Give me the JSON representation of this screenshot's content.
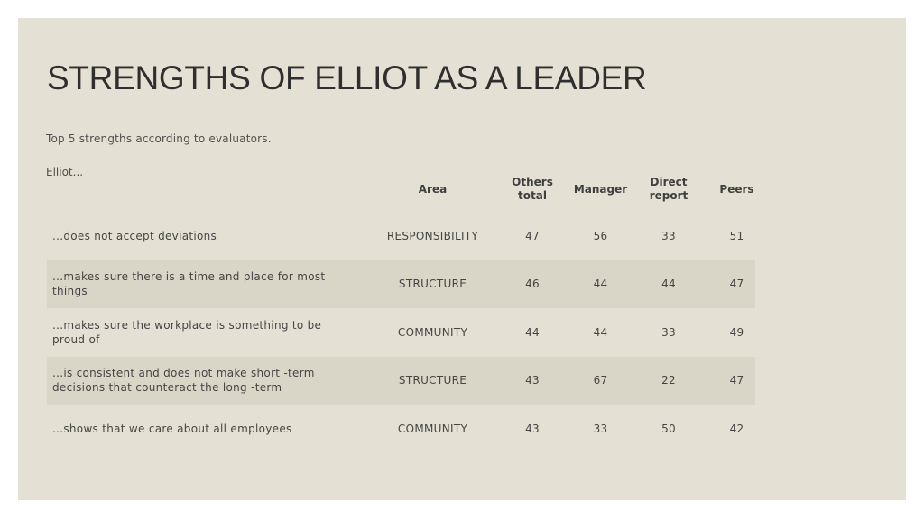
{
  "slide": {
    "title": "STRENGTHS OF ELLIOT AS A LEADER",
    "subtitle": "Top 5 strengths according to evaluators.",
    "lead": "Elliot..."
  },
  "table": {
    "headers": {
      "area": "Area",
      "others_total": "Others total",
      "manager": "Manager",
      "direct_report": "Direct report",
      "peers": "Peers"
    },
    "rows": [
      {
        "statement": "...does not accept deviations",
        "area": "RESPONSIBILITY",
        "others_total": "47",
        "manager": "56",
        "direct_report": "33",
        "peers": "51"
      },
      {
        "statement": "...makes sure there is a time and place for most things",
        "area": "STRUCTURE",
        "others_total": "46",
        "manager": "44",
        "direct_report": "44",
        "peers": "47"
      },
      {
        "statement": "...makes sure the workplace is something to be proud of",
        "area": "COMMUNITY",
        "others_total": "44",
        "manager": "44",
        "direct_report": "33",
        "peers": "49"
      },
      {
        "statement": "...is consistent and does not make short -term decisions that counteract the long -term",
        "area": "STRUCTURE",
        "others_total": "43",
        "manager": "67",
        "direct_report": "22",
        "peers": "47"
      },
      {
        "statement": "...shows that we care about all employees",
        "area": "COMMUNITY",
        "others_total": "43",
        "manager": "33",
        "direct_report": "50",
        "peers": "42"
      }
    ]
  },
  "colors": {
    "background": "#e4e0d3",
    "row_band": "#d9d5c7",
    "text": "#404040"
  }
}
